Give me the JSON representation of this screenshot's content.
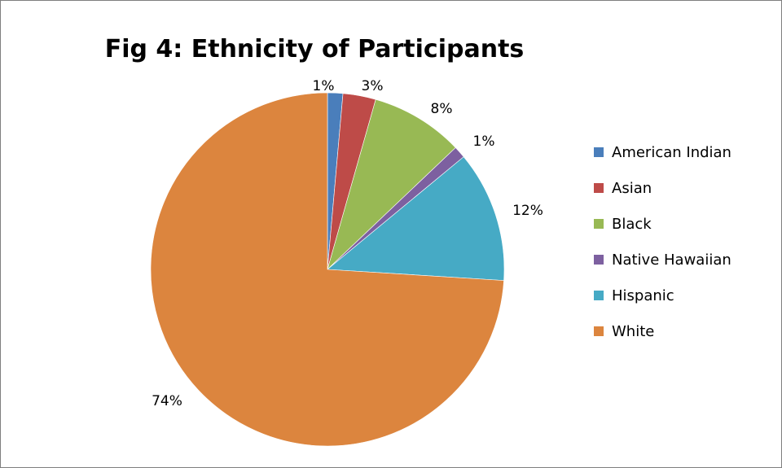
{
  "chart_data": {
    "type": "pie",
    "title": "Fig 4: Ethnicity of Participants",
    "legend_position": "right",
    "start_angle_deg": 0,
    "direction": "clockwise",
    "slices": [
      {
        "name": "American Indian",
        "value": 1.4,
        "label": "1%",
        "color": "#4a7ebb"
      },
      {
        "name": "Asian",
        "value": 3.0,
        "label": "3%",
        "color": "#be4b48"
      },
      {
        "name": "Black",
        "value": 8.5,
        "label": "8%",
        "color": "#98b954"
      },
      {
        "name": "Native Hawaiian",
        "value": 1.1,
        "label": "1%",
        "color": "#7d60a0"
      },
      {
        "name": "Hispanic",
        "value": 12.0,
        "label": "12%",
        "color": "#46aac5"
      },
      {
        "name": "White",
        "value": 74.0,
        "label": "74%",
        "color": "#dc853e"
      }
    ]
  }
}
